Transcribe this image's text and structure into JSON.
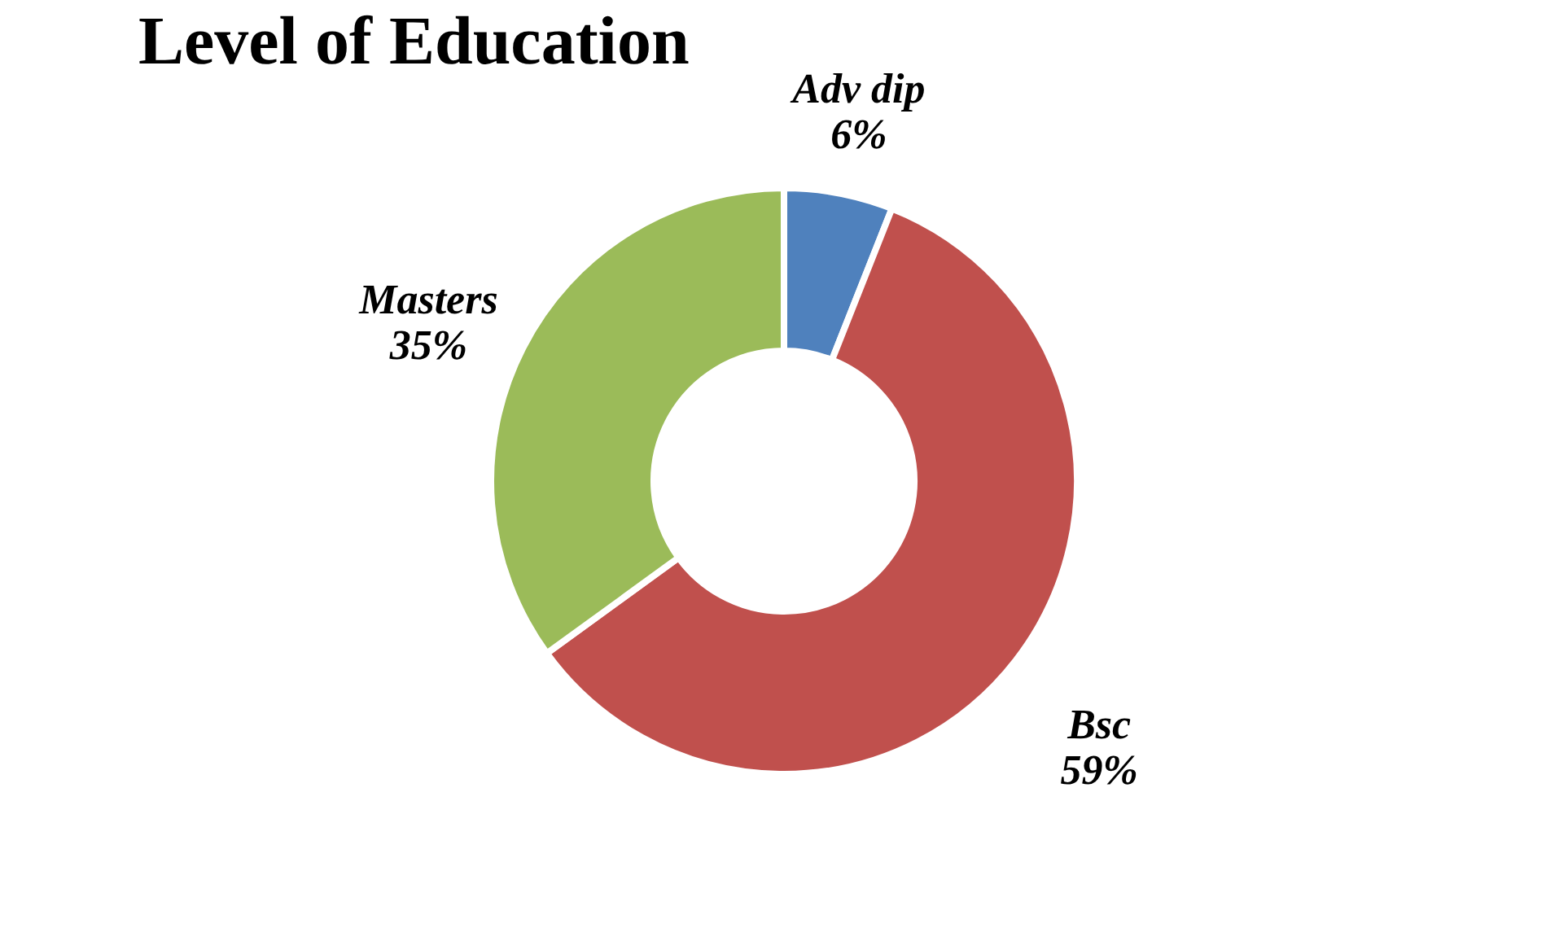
{
  "chart_data": {
    "type": "donut",
    "title": "Level of Education",
    "categories": [
      "Adv dip",
      "Bsc",
      "Masters"
    ],
    "values": [
      6,
      59,
      35
    ],
    "value_labels": [
      "6%",
      "59%",
      "35%"
    ],
    "colors": [
      "#4f81bd",
      "#c0504d",
      "#9bbb59"
    ],
    "legend": false
  }
}
